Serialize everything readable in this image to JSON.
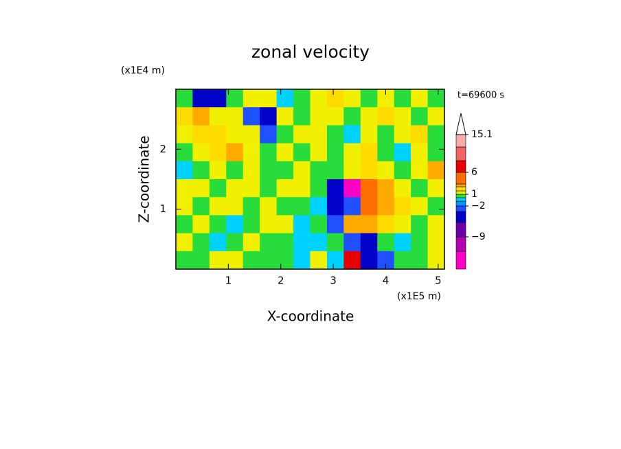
{
  "chart_data": {
    "type": "contour",
    "title": "zonal velocity",
    "xlabel": "X-coordinate",
    "ylabel": "Z-coordinate",
    "xunit": "(x1E5 m)",
    "yunit": "(x1E4 m)",
    "annotation": "t=69600 s",
    "xlim": [
      0,
      5.12
    ],
    "ylim": [
      0,
      3
    ],
    "xticks": [
      1,
      2,
      3,
      4,
      5
    ],
    "yticks": [
      1,
      2
    ],
    "x": [
      0.16,
      0.48,
      0.8,
      1.12,
      1.44,
      1.76,
      2.08,
      2.4,
      2.72,
      3.04,
      3.36,
      3.68,
      4.0,
      4.32,
      4.64,
      4.96
    ],
    "y": [
      2.85,
      2.55,
      2.25,
      1.95,
      1.65,
      1.35,
      1.05,
      0.75,
      0.45,
      0.15
    ],
    "z": [
      [
        0.5,
        -5,
        -5,
        0.5,
        1.5,
        1.5,
        -0.5,
        0.5,
        1.5,
        2.5,
        1.5,
        0.5,
        1.5,
        0.5,
        1.5,
        0.5
      ],
      [
        2.5,
        3.5,
        1.5,
        1.5,
        -3,
        -5,
        1.5,
        0.5,
        1.5,
        1.5,
        0.5,
        1.5,
        2.5,
        1.5,
        0.5,
        1.5
      ],
      [
        1.5,
        2.5,
        2.5,
        1.5,
        1.5,
        -3,
        0.5,
        1.5,
        1.5,
        0.5,
        -0.5,
        1.5,
        0.5,
        1.5,
        2.5,
        0.5
      ],
      [
        0.5,
        1.5,
        2.5,
        3.5,
        1.5,
        0.5,
        1.5,
        0.5,
        1.5,
        0.5,
        1.5,
        2.5,
        0.5,
        -0.5,
        1.5,
        0.5
      ],
      [
        -0.5,
        0.5,
        1.5,
        0.5,
        1.5,
        0.5,
        0.5,
        1.5,
        0.5,
        0.5,
        1.5,
        2.5,
        1.5,
        0.5,
        1.5,
        3.5
      ],
      [
        1.5,
        1.5,
        0.5,
        1.5,
        1.5,
        0.5,
        1.5,
        1.5,
        0.5,
        -5,
        -13,
        5,
        3.5,
        1.5,
        0.5,
        1.5
      ],
      [
        1.5,
        0.5,
        1.5,
        1.5,
        0.5,
        1.5,
        0.5,
        0.5,
        -0.5,
        -5,
        -3,
        5,
        3.5,
        2.5,
        1.5,
        0.5
      ],
      [
        0.5,
        1.5,
        0.5,
        -0.5,
        0.5,
        1.5,
        1.5,
        -0.5,
        0.5,
        -3,
        3.5,
        3.5,
        2.5,
        1.5,
        0.5,
        1.5
      ],
      [
        1.5,
        0.5,
        -0.5,
        0.5,
        1.5,
        0.5,
        0.5,
        -0.5,
        -0.5,
        0.5,
        -3,
        -5,
        0.5,
        -0.5,
        0.5,
        1.5
      ],
      [
        0.5,
        0.5,
        1.5,
        1.5,
        0.5,
        0.5,
        0.5,
        -0.5,
        1.5,
        -0.5,
        7,
        -5,
        -3,
        0.5,
        0.5,
        1.5
      ]
    ],
    "colorbar": {
      "levels": [
        -12,
        -9,
        -6,
        -4,
        -2,
        -1,
        0,
        1,
        2,
        3,
        4,
        6,
        9,
        12,
        15.1
      ],
      "colors": [
        "#ff00c8",
        "#b400b4",
        "#6e00aa",
        "#0000c8",
        "#1e50ff",
        "#0096ff",
        "#00d2ff",
        "#28dc3c",
        "#f0f000",
        "#ffdc00",
        "#ffaa00",
        "#ff6e00",
        "#e60000",
        "#f06464",
        "#f8aaaa",
        "#ffffff"
      ],
      "ticks": [
        15.1,
        6,
        1,
        {
          "value": -2,
          "label": "−2"
        },
        {
          "value": -9,
          "label": "−9"
        }
      ]
    }
  }
}
